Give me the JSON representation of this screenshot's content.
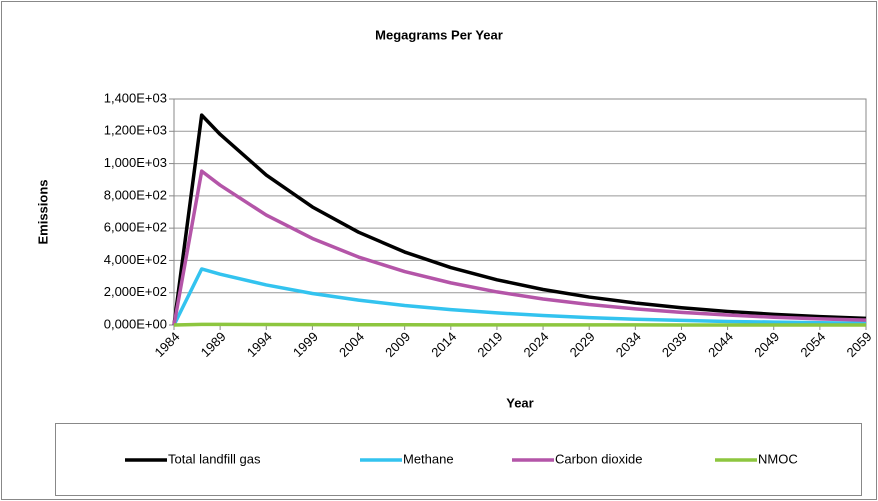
{
  "chart_data": {
    "type": "line",
    "title": "Megagrams Per Year",
    "x_label": "Year",
    "y_label": "Emissions",
    "x": [
      1984,
      1987,
      1989,
      1994,
      1999,
      2004,
      2009,
      2014,
      2019,
      2024,
      2029,
      2034,
      2039,
      2044,
      2049,
      2054,
      2059
    ],
    "series": [
      {
        "name": "Total landfill gas",
        "color": "#000000",
        "values": [
          0,
          1300,
          1181,
          929,
          731,
          575,
          452,
          356,
          280,
          220,
          173,
          136,
          107,
          84,
          66,
          52,
          41
        ]
      },
      {
        "name": "Methane",
        "color": "#33c3ef",
        "values": [
          0,
          347,
          315,
          248,
          195,
          154,
          121,
          95,
          75,
          59,
          46,
          36,
          29,
          22,
          18,
          14,
          11
        ]
      },
      {
        "name": "Carbon dioxide",
        "color": "#b455a8",
        "values": [
          0,
          953,
          866,
          681,
          536,
          421,
          331,
          261,
          205,
          161,
          127,
          100,
          78,
          62,
          48,
          38,
          30
        ]
      },
      {
        "name": "NMOC",
        "color": "#8dc63f",
        "values": [
          0,
          4,
          3.6,
          2.8,
          2.2,
          1.7,
          1.4,
          1.1,
          0.8,
          0.7,
          0.5,
          0.4,
          0.3,
          0.3,
          0.2,
          0.2,
          0.2
        ]
      }
    ],
    "xlim": [
      1984,
      2059
    ],
    "xticks": [
      1984,
      1989,
      1994,
      1999,
      2004,
      2009,
      2014,
      2019,
      2024,
      2029,
      2034,
      2039,
      2044,
      2049,
      2054,
      2059
    ],
    "ylim": [
      0,
      1400
    ],
    "yticks": [
      {
        "value": 0,
        "label": "0,000E+00"
      },
      {
        "value": 200,
        "label": "2,000E+02"
      },
      {
        "value": 400,
        "label": "4,000E+02"
      },
      {
        "value": 600,
        "label": "6,000E+02"
      },
      {
        "value": 800,
        "label": "8,000E+02"
      },
      {
        "value": 1000,
        "label": "1,000E+03"
      },
      {
        "value": 1200,
        "label": "1,200E+03"
      },
      {
        "value": 1400,
        "label": "1,400E+03"
      }
    ],
    "grid": true,
    "legend": "bottom"
  }
}
